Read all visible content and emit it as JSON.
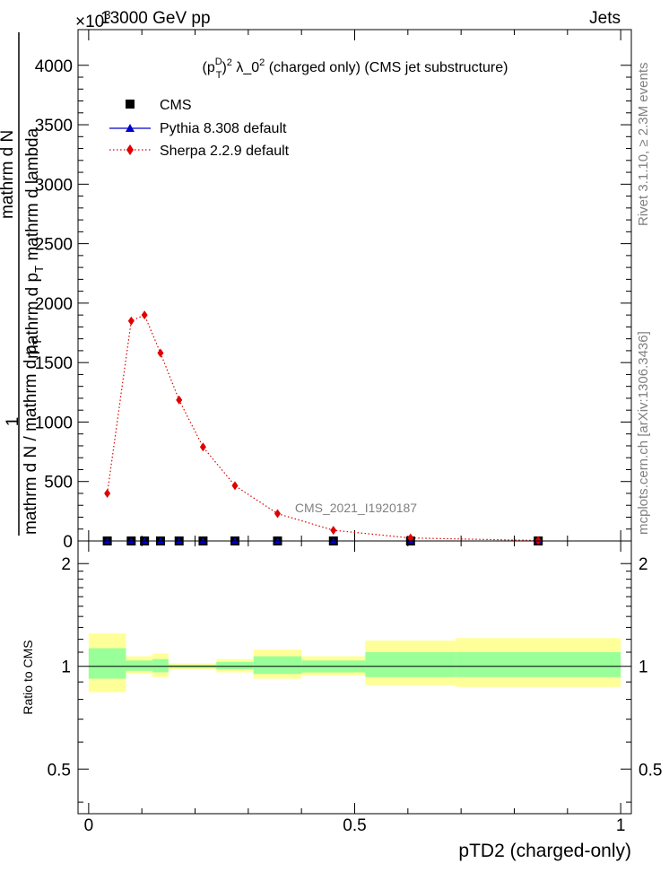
{
  "header": {
    "left": "13000 GeV pp",
    "right": "Jets",
    "multiplier": "×10",
    "multiplier_exp": "3"
  },
  "side_labels": {
    "rivet": "Rivet 3.1.10, ≥ 2.3M events",
    "mcplots": "mcplots.cern.ch [arXiv:1306.3436]"
  },
  "chart_data": [
    {
      "type": "line",
      "title_parts": {
        "p": "(p",
        "sup": "D",
        "sub": "T",
        "close": ")",
        "sq": "2",
        "rest": " λ_0",
        "rest_sup": "2",
        "tail": " (charged only) (CMS jet substructure)"
      },
      "ylabel": {
        "one": "1",
        "denom": "mathrm d N / mathrm d p",
        "denom_sub": "T",
        "num_a": "mathrm d",
        "num_sup": "2",
        "num_b": "N",
        "frac2_den": "mathrm d p",
        "frac2_sub": "T",
        "frac2_den_tail": " mathrm d lambda"
      },
      "ylim": [
        0,
        4300
      ],
      "yticks": [
        {
          "v": 0,
          "label": "0"
        },
        {
          "v": 500,
          "label": "500"
        },
        {
          "v": 1000,
          "label": "1000"
        },
        {
          "v": 1500,
          "label": "1500"
        },
        {
          "v": 2000,
          "label": "2000"
        },
        {
          "v": 2500,
          "label": "2500"
        },
        {
          "v": 3000,
          "label": "3000"
        },
        {
          "v": 3500,
          "label": "3500"
        },
        {
          "v": 4000,
          "label": "4000"
        }
      ],
      "xlim": [
        -0.02,
        1.02
      ],
      "watermark": "CMS_2021_I1920187",
      "legend": [
        {
          "name": "CMS",
          "marker": "square",
          "color": "#000000"
        },
        {
          "name": "Pythia 8.308 default",
          "marker": "triangle",
          "color": "#0000cc"
        },
        {
          "name": "Sherpa 2.2.9 default",
          "marker": "diamond",
          "color": "#e00000"
        }
      ],
      "series": [
        {
          "name": "CMS",
          "x": [
            0.035,
            0.08,
            0.105,
            0.135,
            0.17,
            0.215,
            0.275,
            0.355,
            0.46,
            0.605,
            0.845
          ],
          "y": [
            0,
            0,
            0,
            0,
            0,
            0,
            0,
            0,
            0,
            0,
            0
          ]
        },
        {
          "name": "Sherpa 2.2.9 default",
          "x": [
            0.035,
            0.08,
            0.105,
            0.135,
            0.17,
            0.215,
            0.275,
            0.355,
            0.46,
            0.605,
            0.845
          ],
          "y": [
            400,
            1850,
            1900,
            1580,
            1185,
            790,
            465,
            230,
            90,
            25,
            4
          ]
        }
      ]
    },
    {
      "type": "area",
      "ylabel": "Ratio to CMS",
      "xlabel": "pTD2 (charged-only)",
      "ylim": [
        0.37,
        2.33
      ],
      "log": true,
      "yticks": [
        {
          "v": 0.5,
          "label": "0.5"
        },
        {
          "v": 1,
          "label": "1"
        },
        {
          "v": 2,
          "label": "2"
        }
      ],
      "xticks": [
        {
          "v": 0,
          "label": "0"
        },
        {
          "v": 0.5,
          "label": "0.5"
        },
        {
          "v": 1,
          "label": "1"
        }
      ],
      "band_colors": {
        "outer": "#ffff99",
        "inner": "#99ff99"
      },
      "bins": [
        {
          "x0": 0.0,
          "x1": 0.07,
          "outer": [
            0.84,
            1.25
          ],
          "inner": [
            0.92,
            1.13
          ]
        },
        {
          "x0": 0.07,
          "x1": 0.12,
          "outer": [
            0.95,
            1.07
          ],
          "inner": [
            0.97,
            1.04
          ]
        },
        {
          "x0": 0.12,
          "x1": 0.15,
          "outer": [
            0.93,
            1.09
          ],
          "inner": [
            0.96,
            1.05
          ]
        },
        {
          "x0": 0.15,
          "x1": 0.24,
          "outer": [
            0.98,
            1.02
          ],
          "inner": [
            0.99,
            1.01
          ]
        },
        {
          "x0": 0.24,
          "x1": 0.31,
          "outer": [
            0.96,
            1.05
          ],
          "inner": [
            0.98,
            1.03
          ]
        },
        {
          "x0": 0.31,
          "x1": 0.4,
          "outer": [
            0.92,
            1.12
          ],
          "inner": [
            0.95,
            1.07
          ]
        },
        {
          "x0": 0.4,
          "x1": 0.52,
          "outer": [
            0.94,
            1.07
          ],
          "inner": [
            0.96,
            1.04
          ]
        },
        {
          "x0": 0.52,
          "x1": 0.69,
          "outer": [
            0.88,
            1.19
          ],
          "inner": [
            0.93,
            1.1
          ]
        },
        {
          "x0": 0.69,
          "x1": 1.0,
          "outer": [
            0.87,
            1.21
          ],
          "inner": [
            0.93,
            1.1
          ]
        }
      ]
    }
  ]
}
